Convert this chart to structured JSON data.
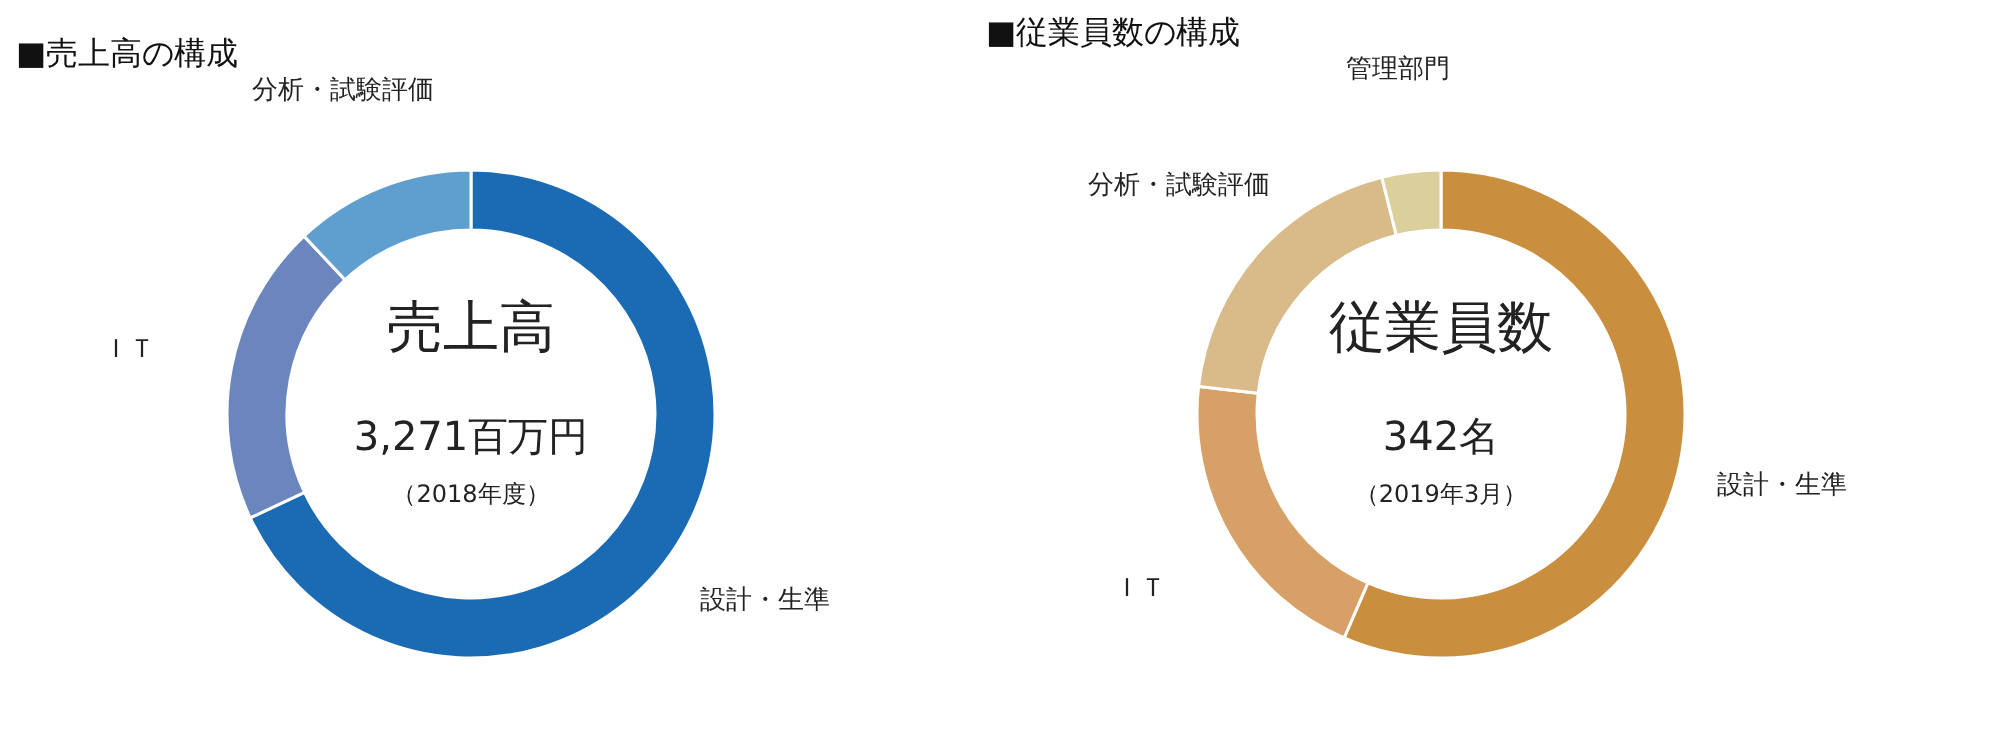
{
  "chart_data": [
    {
      "type": "donut",
      "title": "■売上高の構成",
      "categories": [
        "設計・生準",
        "ＩＴ",
        "分析・試験評価"
      ],
      "values": [
        68,
        20,
        12
      ],
      "colors": [
        "#1a6bb3",
        "#6a86bd",
        "#5f9fd0"
      ],
      "annotations": [
        "売上高",
        "3,271百万円",
        "（2018年度）"
      ]
    },
    {
      "type": "donut",
      "title": "■従業員数の構成",
      "categories": [
        "設計・生準",
        "ＩＴ",
        "分析・試験評価",
        "管理部門"
      ],
      "values": [
        56.5,
        20.3,
        19.3,
        3.9
      ],
      "colors": [
        "#c98f3e",
        "#d6a066",
        "#d9bb8a",
        "#dbd09c"
      ],
      "annotations": [
        "従業員数",
        "342名",
        "（2019年3月）"
      ]
    }
  ]
}
